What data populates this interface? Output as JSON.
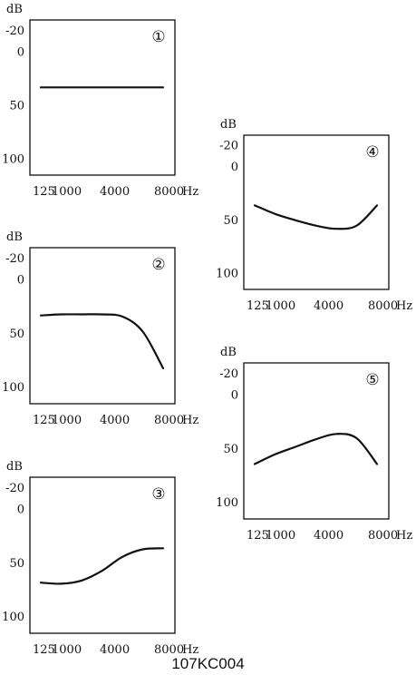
{
  "figure": {
    "code": "107KC004"
  },
  "chart_data": [
    {
      "type": "line",
      "badge": "①",
      "ylabel": "dB",
      "yticks": [
        -20,
        0,
        50,
        100
      ],
      "xticks": [
        "125",
        "1000",
        "4000",
        "8000"
      ],
      "xunit": "Hz",
      "ylim": [
        -30,
        115
      ],
      "x": [
        "125",
        "250",
        "500",
        "1000",
        "2000",
        "4000",
        "8000"
      ],
      "values": [
        33,
        33,
        33,
        33,
        33,
        33,
        33
      ]
    },
    {
      "type": "line",
      "badge": "②",
      "ylabel": "dB",
      "yticks": [
        -20,
        0,
        50,
        100
      ],
      "xticks": [
        "125",
        "1000",
        "4000",
        "8000"
      ],
      "xunit": "Hz",
      "ylim": [
        -30,
        115
      ],
      "x": [
        "125",
        "250",
        "500",
        "1000",
        "2000",
        "4000",
        "8000"
      ],
      "values": [
        33,
        32,
        32,
        32,
        34,
        48,
        82
      ]
    },
    {
      "type": "line",
      "badge": "③",
      "ylabel": "dB",
      "yticks": [
        -20,
        0,
        50,
        100
      ],
      "xticks": [
        "125",
        "1000",
        "4000",
        "8000"
      ],
      "xunit": "Hz",
      "ylim": [
        -30,
        115
      ],
      "x": [
        "125",
        "250",
        "500",
        "1000",
        "2000",
        "4000",
        "8000"
      ],
      "values": [
        68,
        69,
        66,
        57,
        44,
        37,
        36
      ]
    },
    {
      "type": "line",
      "badge": "④",
      "ylabel": "dB",
      "yticks": [
        -20,
        0,
        50,
        100
      ],
      "xticks": [
        "125",
        "1000",
        "4000",
        "8000"
      ],
      "xunit": "Hz",
      "ylim": [
        -30,
        115
      ],
      "x": [
        "125",
        "250",
        "500",
        "1000",
        "2000",
        "4000",
        "8000"
      ],
      "values": [
        36,
        44,
        50,
        55,
        58,
        55,
        36
      ]
    },
    {
      "type": "line",
      "badge": "⑤",
      "ylabel": "dB",
      "yticks": [
        -20,
        0,
        50,
        100
      ],
      "xticks": [
        "125",
        "1000",
        "4000",
        "8000"
      ],
      "xunit": "Hz",
      "ylim": [
        -30,
        115
      ],
      "x": [
        "125",
        "250",
        "500",
        "1000",
        "2000",
        "4000",
        "8000"
      ],
      "values": [
        64,
        55,
        48,
        41,
        36,
        40,
        64
      ]
    }
  ]
}
